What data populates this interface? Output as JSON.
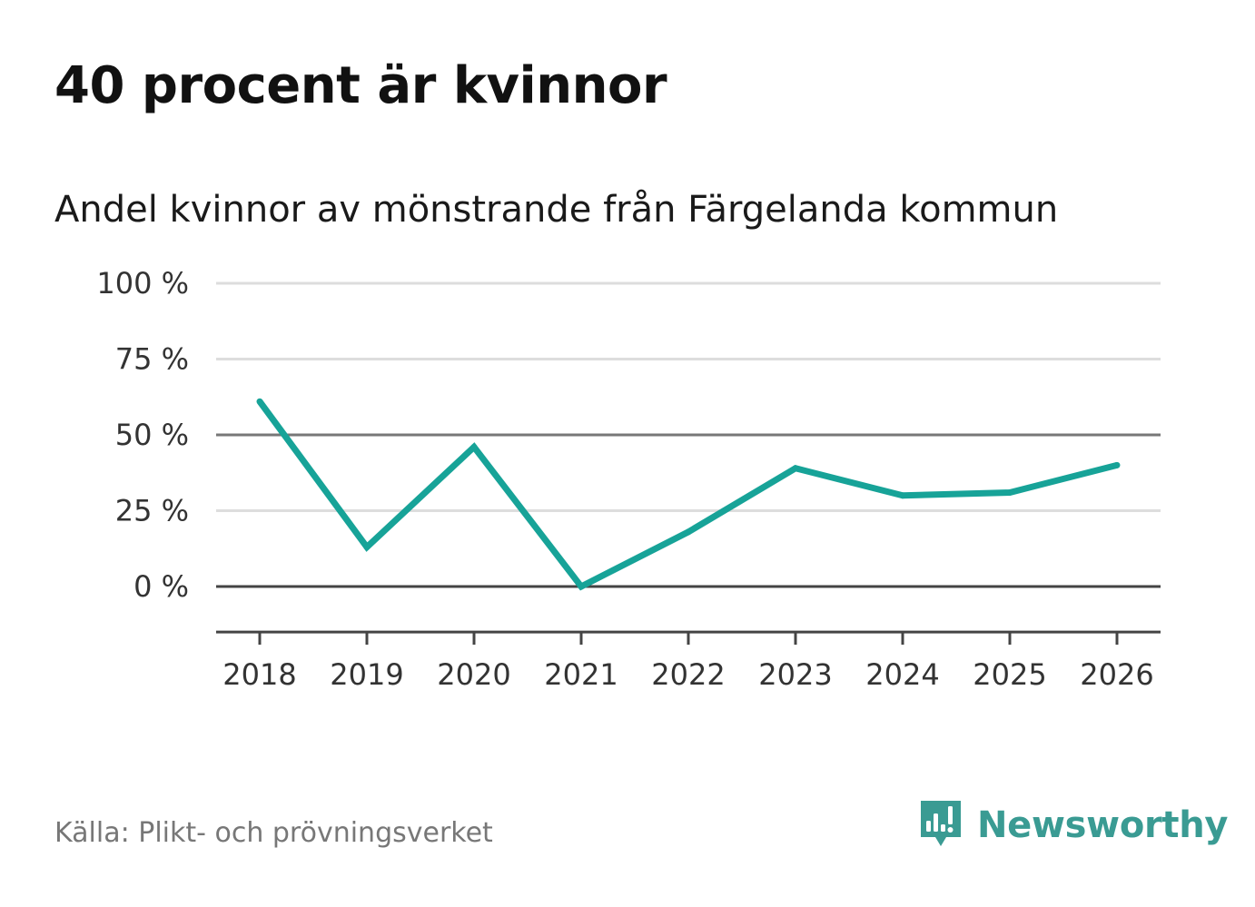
{
  "title": "40 procent är kvinnor",
  "subtitle": "Andel kvinnor av mönstrande från Färgelanda kommun",
  "source": "Källa: Plikt- och prövningsverket",
  "brand": {
    "name": "Newsworthy",
    "icon": "newsworthy-logo-icon",
    "color": "#3a9b93"
  },
  "colors": {
    "line": "#17a398",
    "grid": "#dddddd",
    "reference": "#777777",
    "zero": "#444444",
    "axis": "#444444"
  },
  "chart_data": {
    "type": "line",
    "title": "40 procent är kvinnor",
    "subtitle": "Andel kvinnor av mönstrande från Färgelanda kommun",
    "xlabel": "",
    "ylabel": "",
    "x": [
      "2018",
      "2019",
      "2020",
      "2021",
      "2022",
      "2023",
      "2024",
      "2025",
      "2026"
    ],
    "series": [
      {
        "name": "Andel kvinnor",
        "values": [
          61,
          13,
          46,
          0,
          18,
          39,
          30,
          31,
          40
        ]
      }
    ],
    "ylim": [
      -15,
      100
    ],
    "yticks": [
      0,
      25,
      50,
      75,
      100
    ],
    "ytick_labels": [
      "0 %",
      "25 %",
      "50 %",
      "75 %",
      "100 %"
    ],
    "reference_line": 50,
    "grid": true,
    "legend": "none"
  }
}
